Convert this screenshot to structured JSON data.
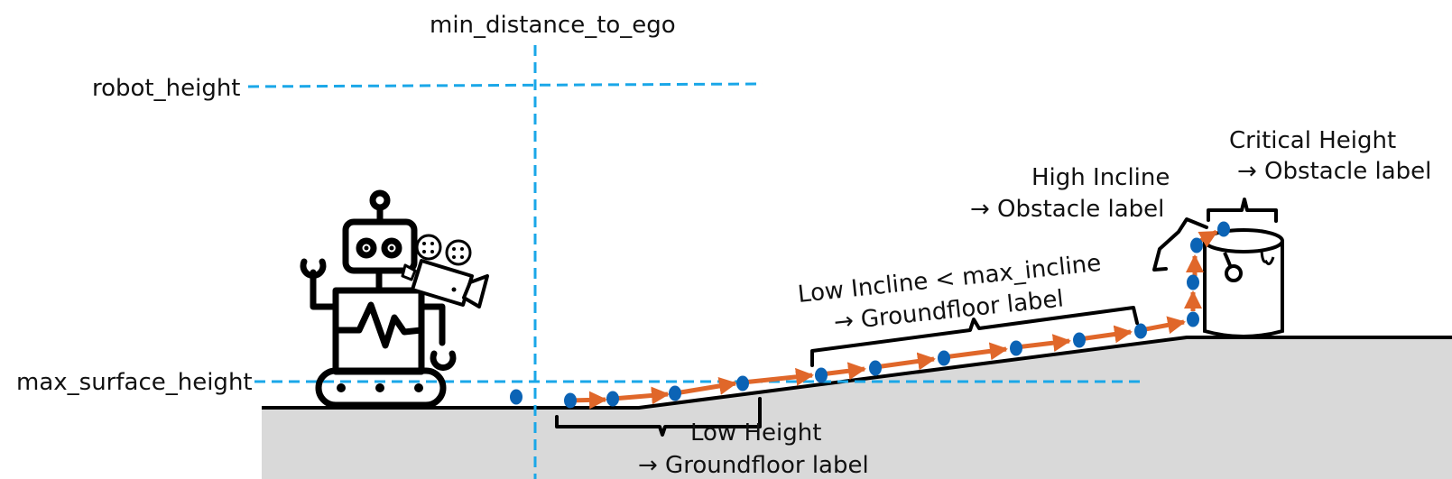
{
  "labels": {
    "min_distance": "min_distance_to_ego",
    "robot_height": "robot_height",
    "max_surface_height": "max_surface_height",
    "critical_height_l1": "Critical Height",
    "critical_height_l2": "→ Obstacle label",
    "high_incline_l1": "High Incline",
    "high_incline_l2": "→ Obstacle label",
    "low_incline_l1": "Low Incline < max_incline",
    "low_incline_l2": "→ Groundfloor label",
    "low_height_l1": "Low Height",
    "low_height_l2": "→ Groundfloor label"
  },
  "colors": {
    "guide_line": "#1aa7e8",
    "point": "#0b63b5",
    "arrow": "#e0672a",
    "ground": "#d9d9d9"
  },
  "icons": [
    "robot-icon",
    "camera-icon",
    "bucket-icon"
  ]
}
